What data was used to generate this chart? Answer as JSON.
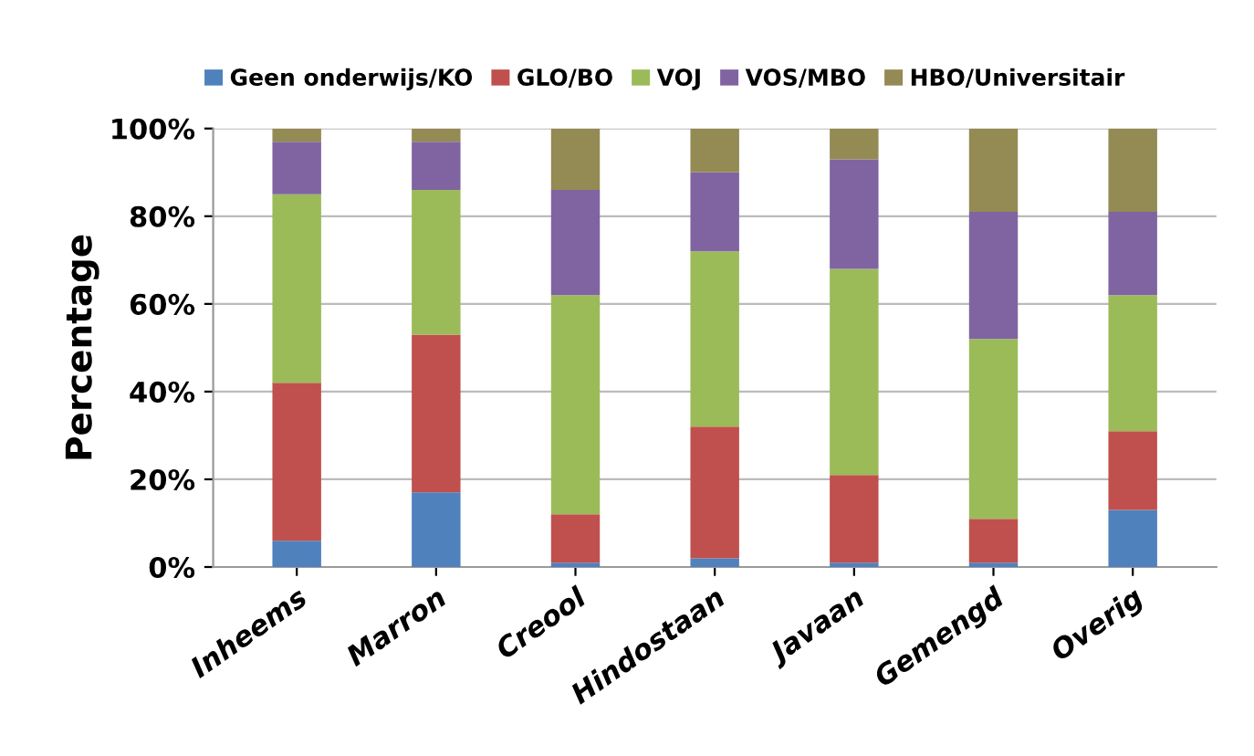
{
  "chart_data": {
    "type": "bar",
    "stacked": true,
    "ylabel": "Percentage",
    "categories": [
      "Inheems",
      "Marron",
      "Creool",
      "Hindostaan",
      "Javaan",
      "Gemengd",
      "Overig"
    ],
    "series": [
      {
        "name": "Geen onderwijs/KO",
        "color": "#4f81bd",
        "values": [
          6,
          17,
          1,
          2,
          1,
          1,
          13
        ]
      },
      {
        "name": "GLO/BO",
        "color": "#c0504d",
        "values": [
          36,
          36,
          11,
          30,
          20,
          10,
          18
        ]
      },
      {
        "name": "VOJ",
        "color": "#9bbb59",
        "values": [
          43,
          33,
          50,
          40,
          47,
          41,
          31
        ]
      },
      {
        "name": "VOS/MBO",
        "color": "#8064a2",
        "values": [
          12,
          11,
          24,
          18,
          25,
          29,
          19
        ]
      },
      {
        "name": "HBO/Universitair",
        "color": "#948a54",
        "values": [
          3,
          3,
          14,
          10,
          7,
          19,
          19
        ]
      }
    ],
    "ylim": [
      0,
      100
    ],
    "yticks": [
      {
        "value": 0,
        "label": "0%"
      },
      {
        "value": 20,
        "label": "20%"
      },
      {
        "value": 40,
        "label": "40%"
      },
      {
        "value": 60,
        "label": "60%"
      },
      {
        "value": 80,
        "label": "80%"
      },
      {
        "value": 100,
        "label": "100%"
      }
    ],
    "grid": "y",
    "legend": "top"
  }
}
